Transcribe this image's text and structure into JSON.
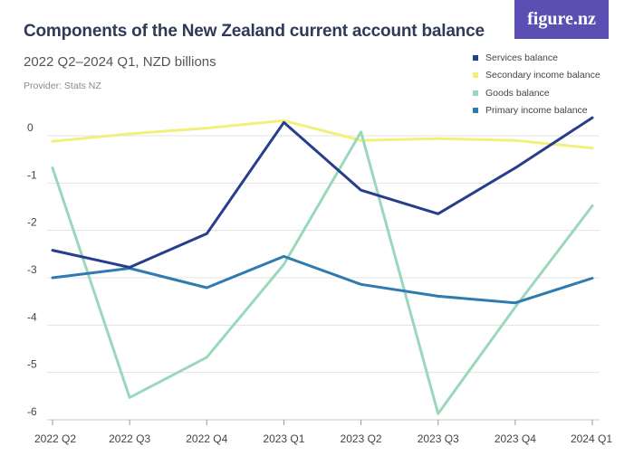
{
  "brand": {
    "logo_text": "figure.nz"
  },
  "header": {
    "title": "Components of the New Zealand current account balance",
    "subtitle": "2022 Q2–2024 Q1, NZD billions",
    "provider": "Provider: Stats NZ"
  },
  "chart_data": {
    "type": "line",
    "title": "Components of the New Zealand current account balance",
    "subtitle": "2022 Q2–2024 Q1, NZD billions",
    "xlabel": "",
    "ylabel": "",
    "categories": [
      "2022 Q2",
      "2022 Q3",
      "2022 Q4",
      "2023 Q1",
      "2023 Q2",
      "2023 Q3",
      "2023 Q4",
      "2024 Q1"
    ],
    "y_ticks": [
      "0",
      "-1",
      "-2",
      "-3",
      "-4",
      "-5",
      "-6"
    ],
    "ylim": [
      -6,
      0.5
    ],
    "grid": true,
    "legend_position": "top-right",
    "series": [
      {
        "name": "Services balance",
        "color": "#263e8c",
        "values": [
          -2.42,
          -2.78,
          -2.07,
          0.28,
          -1.15,
          -1.65,
          -0.68,
          0.38
        ]
      },
      {
        "name": "Secondary income balance",
        "color": "#f3f07a",
        "values": [
          -0.12,
          0.04,
          0.16,
          0.32,
          -0.1,
          -0.06,
          -0.1,
          -0.26
        ]
      },
      {
        "name": "Goods balance",
        "color": "#9ad8bb",
        "values": [
          -0.68,
          -5.53,
          -4.68,
          -2.72,
          0.08,
          -5.87,
          -3.62,
          -1.48
        ]
      },
      {
        "name": "Primary income balance",
        "color": "#2f7bb0",
        "values": [
          -3.0,
          -2.8,
          -3.21,
          -2.55,
          -3.14,
          -3.39,
          -3.53,
          -3.01
        ]
      }
    ]
  }
}
